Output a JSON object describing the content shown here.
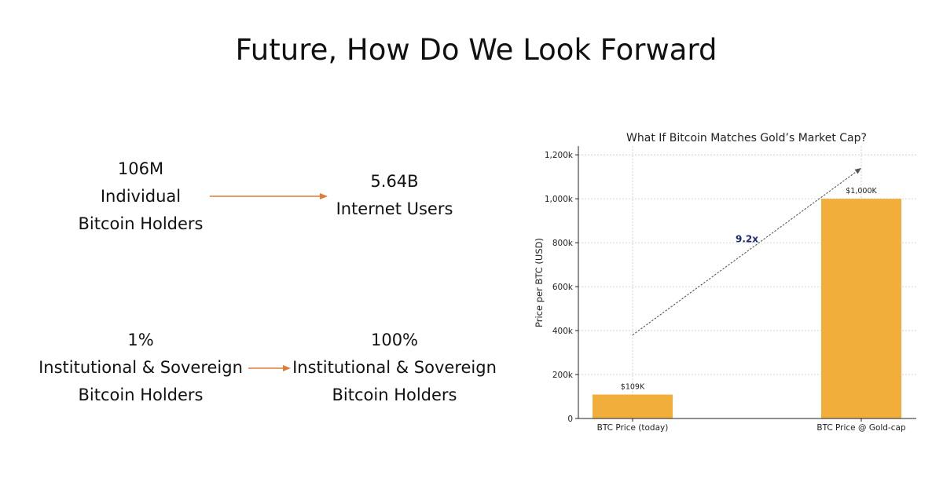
{
  "slide": {
    "title": "Future, How Do We Look Forward"
  },
  "comparisons": [
    {
      "from": {
        "value": "106M",
        "line1": "Individual",
        "line2": "Bitcoin Holders"
      },
      "to": {
        "value": "5.64B",
        "line1": "Internet Users"
      }
    },
    {
      "from": {
        "value": "1%",
        "line1": "Institutional & Sovereign",
        "line2": "Bitcoin Holders"
      },
      "to": {
        "value": "100%",
        "line1": "Institutional & Sovereign",
        "line2": "Bitcoin Holders"
      }
    }
  ],
  "colors": {
    "arrow": "#e07b39",
    "bar": "#f2ae3a",
    "multiplier": "#1b2a6b",
    "trend": "#555555"
  },
  "chart_data": {
    "type": "bar",
    "title": "What If Bitcoin Matches Gold’s Market Cap?",
    "ylabel": "Price per BTC (USD)",
    "xlabel": "",
    "categories": [
      "BTC Price (today)",
      "BTC Price @ Gold-cap"
    ],
    "values": [
      109000,
      1000000
    ],
    "data_labels": [
      "$109K",
      "$1,000K"
    ],
    "ylim": [
      0,
      1240000
    ],
    "yticks": [
      0,
      200000,
      400000,
      600000,
      800000,
      1000000,
      1200000
    ],
    "ytick_labels": [
      "0",
      "200k",
      "400k",
      "600k",
      "800k",
      "1,000k",
      "1,200k"
    ],
    "grid": true,
    "annotation": {
      "text": "9.2x",
      "from": [
        0,
        380000
      ],
      "to": [
        1,
        1140000
      ]
    }
  }
}
